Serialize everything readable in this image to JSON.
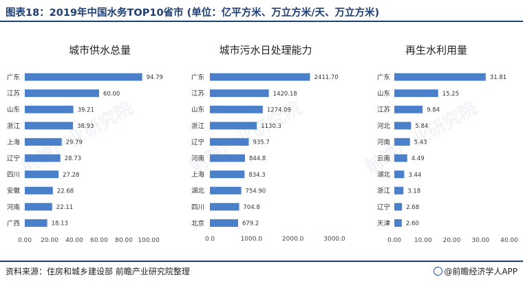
{
  "title": "图表18：2019年中国水务TOP10省市 (单位：亿平方米、万立方米/天、万立方米)",
  "source": "资料来源：住房和城乡建设部 前瞻产业研究院整理",
  "brand": "@前瞻经济学人APP",
  "bar_color": "#4a7fc9",
  "chart_data": [
    {
      "type": "bar",
      "orientation": "horizontal",
      "title": "城市供水总量",
      "categories": [
        "广东",
        "江苏",
        "山东",
        "浙江",
        "上海",
        "辽宁",
        "四川",
        "安徽",
        "河南",
        "广西"
      ],
      "values": [
        94.79,
        60.0,
        39.21,
        38.93,
        29.79,
        28.73,
        27.28,
        22.68,
        22.11,
        18.13
      ],
      "labels": [
        "94.79",
        "60.00",
        "39.21",
        "38.93",
        "29.79",
        "28.73",
        "27.28",
        "22.68",
        "22.11",
        "18.13"
      ],
      "xlim": [
        0,
        100
      ],
      "ticks": [
        "0.00",
        "20.00",
        "40.00",
        "60.00",
        "80.00",
        "100.00"
      ],
      "tick_values": [
        0,
        20,
        40,
        60,
        80,
        100
      ]
    },
    {
      "type": "bar",
      "orientation": "horizontal",
      "title": "城市污水日处理能力",
      "categories": [
        "广东",
        "江苏",
        "山东",
        "浙江",
        "辽宁",
        "河南",
        "上海",
        "湖北",
        "四川",
        "北京"
      ],
      "values": [
        2411.7,
        1420.18,
        1274.09,
        1130.3,
        935.7,
        844.8,
        834.3,
        754.9,
        704.8,
        679.2
      ],
      "labels": [
        "2411.70",
        "1420.18",
        "1274.09",
        "1130.3",
        "935.7",
        "844.8",
        "834.3",
        "754.90",
        "704.8",
        "679.2"
      ],
      "xlim": [
        0,
        3000
      ],
      "ticks": [
        "0.0",
        "1000.0",
        "2000.0",
        "3000.0"
      ],
      "tick_values": [
        0,
        1000,
        2000,
        3000
      ]
    },
    {
      "type": "bar",
      "orientation": "horizontal",
      "title": "再生水利用量",
      "categories": [
        "广东",
        "山东",
        "江苏",
        "河北",
        "河南",
        "云南",
        "湖北",
        "浙江",
        "辽宁",
        "天津"
      ],
      "values": [
        31.81,
        15.25,
        9.84,
        5.84,
        5.43,
        4.49,
        3.44,
        3.18,
        2.68,
        2.6
      ],
      "labels": [
        "31.81",
        "15.25",
        "9.84",
        "5.84",
        "5.43",
        "4.49",
        "3.44",
        "3.18",
        "2.68",
        "2.60"
      ],
      "xlim": [
        0,
        40
      ],
      "ticks": [
        "0.00",
        "10.00",
        "20.00",
        "30.00",
        "40.00"
      ],
      "tick_values": [
        0,
        10,
        20,
        30,
        40
      ]
    }
  ]
}
